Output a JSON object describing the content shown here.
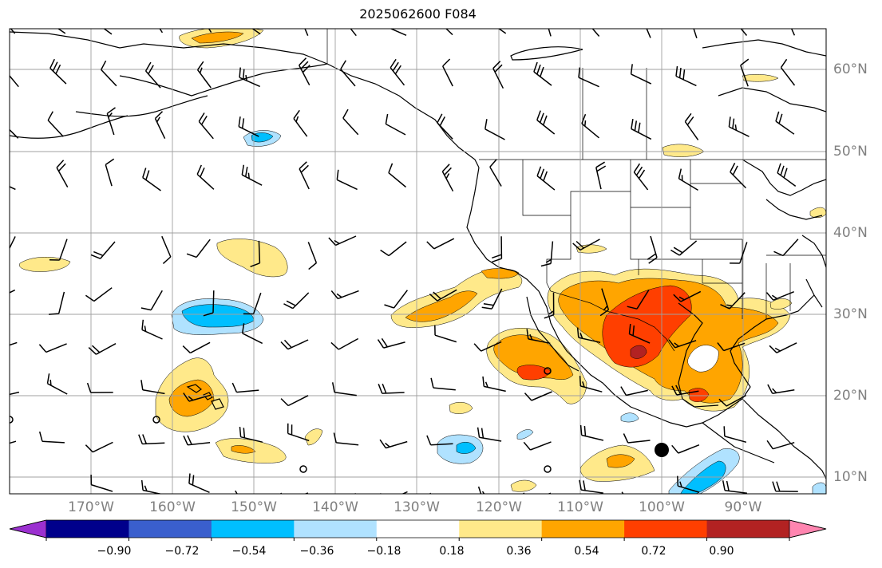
{
  "title": "2025062600 F084",
  "lon_labels": [
    "170°W",
    "160°W",
    "150°W",
    "140°W",
    "130°W",
    "120°W",
    "110°W",
    "100°W",
    "90°W"
  ],
  "lat_labels": [
    "10°N",
    "20°N",
    "30°N",
    "40°N",
    "50°N",
    "60°N"
  ],
  "colorbar": {
    "tick_labels": [
      "−0.90",
      "−0.72",
      "−0.54",
      "−0.36",
      "−0.18",
      "0.18",
      "0.36",
      "0.54",
      "0.72",
      "0.90"
    ],
    "colors": [
      "#9b30d0",
      "#00008b",
      "#3a5fcd",
      "#00bfff",
      "#b0e2ff",
      "#ffffff",
      "#ffe98a",
      "#ffa500",
      "#ff3f00",
      "#b22222",
      "#ff85b0"
    ]
  },
  "field_colors": {
    "positive_1": "#ffe98a",
    "positive_2": "#ffa500",
    "positive_3": "#ff3f00",
    "positive_4": "#b22222",
    "negative_1": "#b0e2ff",
    "negative_2": "#00bfff"
  }
}
